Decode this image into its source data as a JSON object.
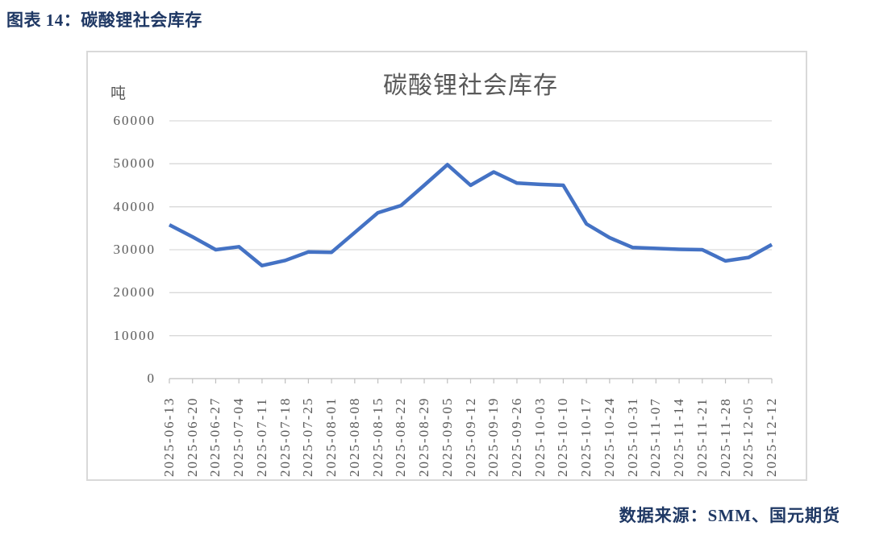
{
  "caption": "图表 14：碳酸锂社会库存",
  "source": "数据来源：SMM、国元期货",
  "colors": {
    "accent_navy": "#1f3864",
    "axis_text": "#595959",
    "gridline": "#d9d9d9",
    "axis_line": "#bfbfbf",
    "series_line": "#4472C4",
    "box_border": "#d9d9d9"
  },
  "chart_data": {
    "type": "line",
    "title": "碳酸锂社会库存",
    "unit": "吨",
    "xlabel": "",
    "ylabel": "吨",
    "ylim": [
      0,
      60000
    ],
    "yticks": [
      0,
      10000,
      20000,
      30000,
      40000,
      50000,
      60000
    ],
    "grid": "horizontal",
    "legend": "none",
    "series_name": "碳酸锂社会库存",
    "categories": [
      "2025-06-13",
      "2025-06-20",
      "2025-06-27",
      "2025-07-04",
      "2025-07-11",
      "2025-07-18",
      "2025-07-25",
      "2025-08-01",
      "2025-08-08",
      "2025-08-15",
      "2025-08-22",
      "2025-08-29",
      "2025-09-05",
      "2025-09-12",
      "2025-09-19",
      "2025-09-26",
      "2025-10-03",
      "2025-10-10",
      "2025-10-17",
      "2025-10-24",
      "2025-10-31",
      "2025-11-07",
      "2025-11-14",
      "2025-11-21",
      "2025-11-28",
      "2025-12-05",
      "2025-12-12"
    ],
    "values": [
      35800,
      33000,
      30000,
      30700,
      26300,
      27500,
      29500,
      29400,
      34000,
      38600,
      40300,
      45000,
      49800,
      45000,
      48100,
      45500,
      45200,
      45000,
      36000,
      32800,
      30500,
      30300,
      30100,
      30000,
      27400,
      28200,
      31200
    ]
  }
}
